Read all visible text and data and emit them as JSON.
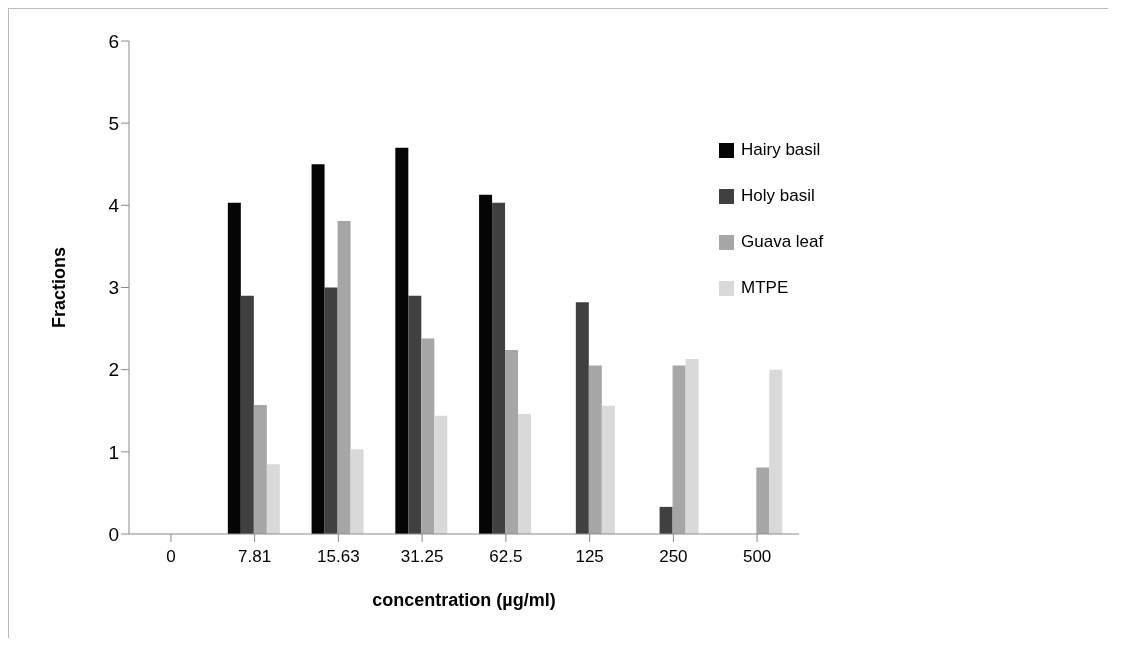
{
  "chart_data": {
    "type": "bar",
    "xlabel": "concentration (µg/ml)",
    "ylabel": "Fractions",
    "categories": [
      "0",
      "7.81",
      "15.63",
      "31.25",
      "62.5",
      "125",
      "250",
      "500"
    ],
    "series": [
      {
        "name": "Hairy basil",
        "color": "#050505",
        "values": [
          0,
          4.03,
          4.5,
          4.7,
          4.13,
          0,
          0,
          0
        ]
      },
      {
        "name": "Holy basil",
        "color": "#404040",
        "values": [
          0,
          2.9,
          3.0,
          2.9,
          4.03,
          2.82,
          0.33,
          0
        ]
      },
      {
        "name": "Guava leaf",
        "color": "#a6a6a6",
        "values": [
          0,
          1.57,
          3.81,
          2.38,
          2.24,
          2.05,
          2.05,
          0.81
        ]
      },
      {
        "name": "MTPE",
        "color": "#d9d9d9",
        "values": [
          0,
          0.85,
          1.03,
          1.44,
          1.46,
          1.56,
          2.13,
          2.0
        ]
      }
    ],
    "ylim": [
      0,
      6
    ],
    "yticks": [
      0,
      1,
      2,
      3,
      4,
      5,
      6
    ],
    "grid": false,
    "legend": "top right"
  }
}
